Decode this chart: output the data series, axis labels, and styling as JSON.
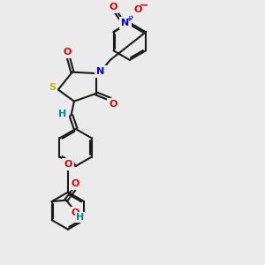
{
  "bg_color": "#ebebeb",
  "bond_color": "#1a1a1a",
  "bond_lw": 1.5,
  "dbl_off": 0.06,
  "atom_colors": {
    "O": "#dd0000",
    "N": "#0000cc",
    "S": "#bbbb00",
    "H": "#008888",
    "C": "#1a1a1a"
  },
  "fs": 8.0
}
